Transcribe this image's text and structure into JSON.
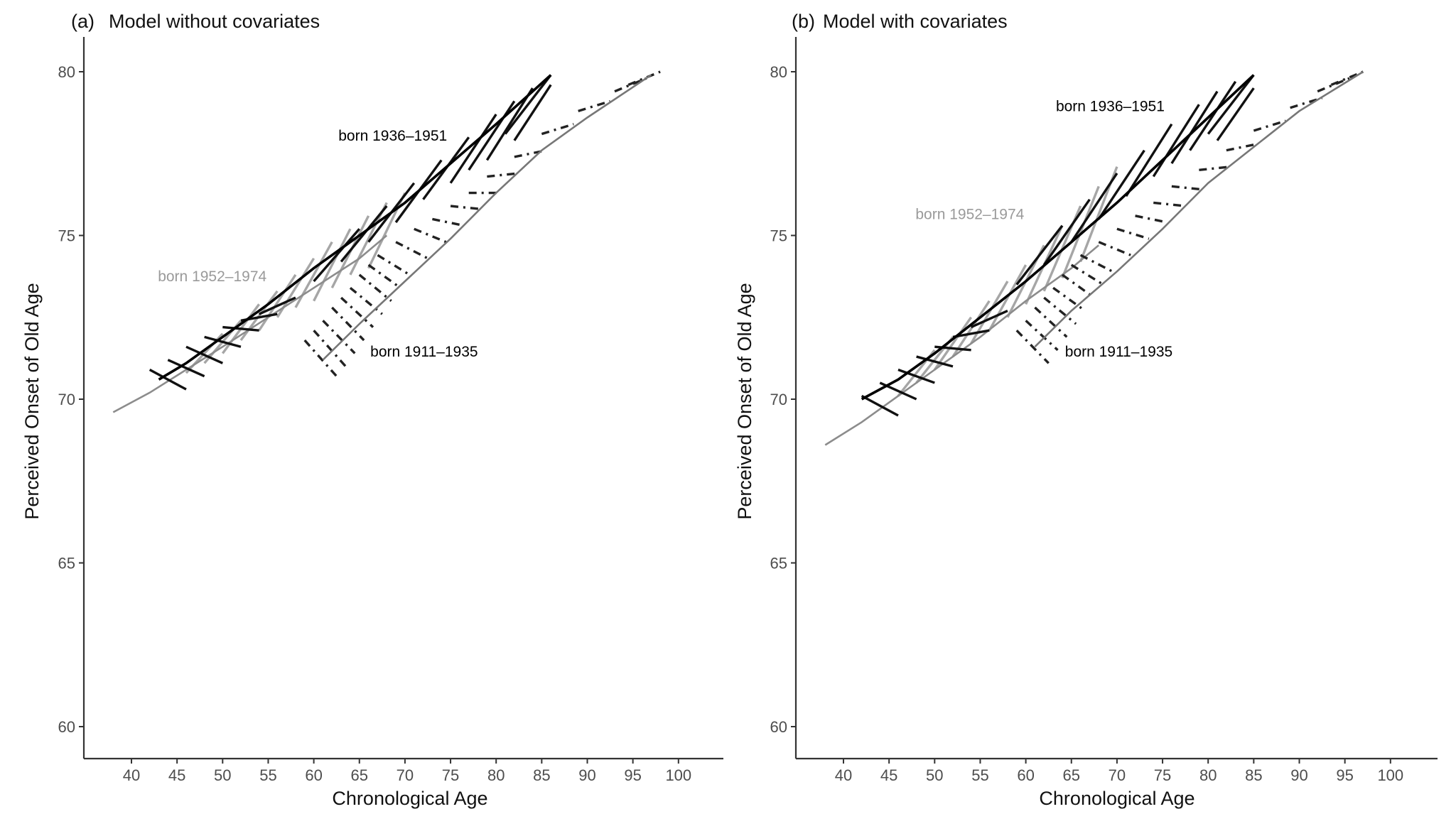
{
  "chart_data": [
    {
      "type": "line",
      "panel_tag": "(a)",
      "title": "Model without covariates",
      "xlabel": "Chronological Age",
      "ylabel": "Perceived Onset of Old Age",
      "xlim": [
        35,
        105
      ],
      "ylim": [
        59,
        81
      ],
      "xticks": [
        40,
        45,
        50,
        55,
        60,
        65,
        70,
        75,
        80,
        85,
        90,
        95,
        100
      ],
      "yticks": [
        60,
        65,
        70,
        75,
        80
      ],
      "grid": false,
      "legend": "none",
      "series": [
        {
          "label": "born 1952–1974",
          "color": "#a6a6a6",
          "style": "solid",
          "label_pos": [
            42.9,
            73.6
          ],
          "curve": [
            [
              38,
              69.6
            ],
            [
              42,
              70.2
            ],
            [
              46,
              70.9
            ],
            [
              50,
              71.6
            ],
            [
              55,
              72.5
            ],
            [
              60,
              73.4
            ],
            [
              65,
              74.3
            ],
            [
              68,
              75.0
            ]
          ],
          "segments": [
            [
              46,
              70.8,
              50,
              72.0
            ],
            [
              48,
              71.1,
              52,
              72.4
            ],
            [
              50,
              71.4,
              54,
              72.9
            ],
            [
              52,
              71.8,
              56,
              73.3
            ],
            [
              54,
              72.1,
              58,
              73.8
            ],
            [
              56,
              72.5,
              60,
              74.3
            ],
            [
              58,
              72.8,
              62,
              74.8
            ],
            [
              60,
              73.0,
              64,
              75.2
            ],
            [
              62,
              73.4,
              66,
              75.6
            ],
            [
              64,
              73.8,
              68,
              76.0
            ],
            [
              66,
              74.0,
              70,
              76.3
            ]
          ]
        },
        {
          "label": "born 1936–1951",
          "color": "#111111",
          "style": "solid",
          "label_pos": [
            62.7,
            77.9
          ],
          "curve": [
            [
              43,
              70.6
            ],
            [
              46,
              71.1
            ],
            [
              50,
              71.9
            ],
            [
              55,
              72.9
            ],
            [
              60,
              74.0
            ],
            [
              65,
              75.0
            ],
            [
              70,
              76.0
            ],
            [
              75,
              77.2
            ],
            [
              80,
              78.4
            ],
            [
              86,
              79.9
            ]
          ],
          "segments": [
            [
              42,
              70.9,
              46,
              70.3
            ],
            [
              44,
              71.2,
              48,
              70.7
            ],
            [
              46,
              71.6,
              50,
              71.1
            ],
            [
              48,
              71.9,
              52,
              71.6
            ],
            [
              50,
              72.2,
              54,
              72.1
            ],
            [
              52,
              72.4,
              56,
              72.6
            ],
            [
              54,
              72.6,
              58,
              73.1
            ],
            [
              60,
              73.6,
              65,
              75.2
            ],
            [
              63,
              74.2,
              68,
              75.9
            ],
            [
              66,
              74.8,
              71,
              76.6
            ],
            [
              69,
              75.4,
              74,
              77.3
            ],
            [
              72,
              76.1,
              77,
              78.0
            ],
            [
              75,
              76.6,
              80,
              78.7
            ],
            [
              77,
              77.0,
              82,
              79.1
            ],
            [
              79,
              77.3,
              84,
              79.5
            ],
            [
              81,
              78.1,
              86,
              79.9
            ],
            [
              82,
              77.9,
              86,
              79.6
            ]
          ]
        },
        {
          "label": "born 1911–1935",
          "color": "#222222",
          "style": "dotdash",
          "label_pos": [
            66.2,
            71.3
          ],
          "curve": [
            [
              61,
              71.2
            ],
            [
              65,
              72.3
            ],
            [
              70,
              73.6
            ],
            [
              75,
              74.9
            ],
            [
              80,
              76.3
            ],
            [
              85,
              77.6
            ],
            [
              90,
              78.6
            ],
            [
              97,
              79.9
            ]
          ],
          "segments": [
            [
              59,
              71.8,
              62.5,
              70.7
            ],
            [
              60,
              72.1,
              63.5,
              71.0
            ],
            [
              61,
              72.4,
              64.5,
              71.4
            ],
            [
              62,
              72.8,
              65.5,
              71.8
            ],
            [
              63,
              73.1,
              66.5,
              72.2
            ],
            [
              64,
              73.4,
              67.5,
              72.6
            ],
            [
              65,
              73.8,
              68.5,
              73.0
            ],
            [
              66,
              74.1,
              69.5,
              73.4
            ],
            [
              67,
              74.4,
              70.5,
              73.8
            ],
            [
              69,
              74.8,
              72.5,
              74.3
            ],
            [
              71,
              75.2,
              74.5,
              74.8
            ],
            [
              73,
              75.5,
              76.5,
              75.3
            ],
            [
              75,
              75.9,
              78.5,
              75.8
            ],
            [
              77,
              76.3,
              80.5,
              76.3
            ],
            [
              79,
              76.8,
              82.5,
              76.9
            ],
            [
              82,
              77.4,
              85.5,
              77.6
            ],
            [
              85,
              78.1,
              88.5,
              78.4
            ],
            [
              89,
              78.8,
              92.5,
              79.1
            ],
            [
              93,
              79.4,
              96.5,
              79.8
            ],
            [
              94.5,
              79.6,
              98,
              80.0
            ]
          ]
        }
      ]
    },
    {
      "type": "line",
      "panel_tag": "(b)",
      "title": "Model with covariates",
      "xlabel": "Chronological Age",
      "ylabel": "Perceived Onset of Old Age",
      "xlim": [
        35,
        105
      ],
      "ylim": [
        59,
        81
      ],
      "xticks": [
        40,
        45,
        50,
        55,
        60,
        65,
        70,
        75,
        80,
        85,
        90,
        95,
        100
      ],
      "yticks": [
        60,
        65,
        70,
        75,
        80
      ],
      "grid": false,
      "legend": "none",
      "series": [
        {
          "label": "born 1952–1974",
          "color": "#a6a6a6",
          "style": "solid",
          "label_pos": [
            47.9,
            75.5
          ],
          "curve": [
            [
              38,
              68.6
            ],
            [
              42,
              69.3
            ],
            [
              46,
              70.1
            ],
            [
              50,
              70.9
            ],
            [
              55,
              71.9
            ],
            [
              60,
              73.0
            ],
            [
              65,
              74.0
            ],
            [
              68,
              74.7
            ]
          ],
          "segments": [
            [
              46,
              70.1,
              50,
              71.5
            ],
            [
              48,
              70.5,
              52,
              71.9
            ],
            [
              50,
              70.9,
              54,
              72.5
            ],
            [
              52,
              71.3,
              56,
              73.0
            ],
            [
              54,
              71.7,
              58,
              73.6
            ],
            [
              56,
              72.1,
              60,
              74.1
            ],
            [
              58,
              72.5,
              62,
              74.7
            ],
            [
              60,
              72.9,
              64,
              75.3
            ],
            [
              62,
              73.3,
              66,
              75.9
            ],
            [
              64,
              73.7,
              68,
              76.5
            ],
            [
              66,
              74.2,
              70,
              77.1
            ]
          ]
        },
        {
          "label": "born 1936–1951",
          "color": "#111111",
          "style": "solid",
          "label_pos": [
            63.3,
            78.8
          ],
          "curve": [
            [
              42,
              70.0
            ],
            [
              46,
              70.6
            ],
            [
              50,
              71.4
            ],
            [
              55,
              72.5
            ],
            [
              60,
              73.6
            ],
            [
              65,
              74.8
            ],
            [
              70,
              76.0
            ],
            [
              75,
              77.3
            ],
            [
              80,
              78.6
            ],
            [
              85,
              79.9
            ]
          ],
          "segments": [
            [
              42,
              70.1,
              46,
              69.5
            ],
            [
              44,
              70.5,
              48,
              70.0
            ],
            [
              46,
              70.9,
              50,
              70.5
            ],
            [
              48,
              71.3,
              52,
              71.0
            ],
            [
              50,
              71.6,
              54,
              71.5
            ],
            [
              52,
              71.9,
              56,
              72.1
            ],
            [
              54,
              72.2,
              58,
              72.7
            ],
            [
              59,
              73.5,
              64,
              75.3
            ],
            [
              62,
              74.1,
              67,
              76.1
            ],
            [
              65,
              74.8,
              70,
              76.9
            ],
            [
              68,
              75.5,
              73,
              77.6
            ],
            [
              71,
              76.2,
              76,
              78.4
            ],
            [
              74,
              76.8,
              79,
              79.0
            ],
            [
              76,
              77.2,
              81,
              79.4
            ],
            [
              78,
              77.6,
              83,
              79.7
            ],
            [
              80,
              78.1,
              85,
              79.9
            ],
            [
              81,
              77.9,
              85,
              79.5
            ]
          ]
        },
        {
          "label": "born 1911–1935",
          "color": "#222222",
          "style": "dotdash",
          "label_pos": [
            64.3,
            71.3
          ],
          "curve": [
            [
              61,
              71.6
            ],
            [
              65,
              72.7
            ],
            [
              70,
              73.9
            ],
            [
              75,
              75.2
            ],
            [
              80,
              76.6
            ],
            [
              85,
              77.7
            ],
            [
              90,
              78.8
            ],
            [
              97,
              80.0
            ]
          ],
          "segments": [
            [
              59,
              72.1,
              62.5,
              71.1
            ],
            [
              60,
              72.4,
              63.5,
              71.5
            ],
            [
              61,
              72.8,
              64.5,
              71.9
            ],
            [
              62,
              73.1,
              65.5,
              72.3
            ],
            [
              63,
              73.4,
              66.5,
              72.7
            ],
            [
              64,
              73.8,
              67.5,
              73.1
            ],
            [
              65,
              74.1,
              68.5,
              73.5
            ],
            [
              66,
              74.4,
              69.5,
              73.9
            ],
            [
              68,
              74.8,
              71.5,
              74.4
            ],
            [
              70,
              75.2,
              73.5,
              74.9
            ],
            [
              72,
              75.6,
              75.5,
              75.4
            ],
            [
              74,
              76.0,
              77.5,
              75.9
            ],
            [
              76,
              76.5,
              79.5,
              76.4
            ],
            [
              79,
              77.0,
              82.5,
              77.1
            ],
            [
              82,
              77.6,
              85.5,
              77.8
            ],
            [
              85,
              78.2,
              88.5,
              78.5
            ],
            [
              89,
              78.9,
              92.5,
              79.2
            ],
            [
              92,
              79.4,
              95.5,
              79.8
            ],
            [
              93.5,
              79.6,
              97,
              80.0
            ]
          ]
        }
      ]
    }
  ]
}
